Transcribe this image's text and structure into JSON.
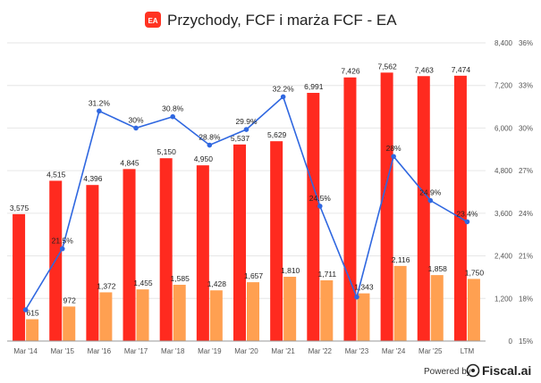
{
  "chart_data": {
    "type": "bar",
    "title": "Przychody, FCF i marża FCF - EA",
    "logo_text": "EA",
    "categories": [
      "Mar '14",
      "Mar '15",
      "Mar '16",
      "Mar '17",
      "Mar '18",
      "Mar '19",
      "Mar '20",
      "Mar '21",
      "Mar '22",
      "Mar '23",
      "Mar '24",
      "Mar '25",
      "LTM"
    ],
    "series": [
      {
        "name": "Przychody",
        "type": "bar",
        "color": "#ff2a1f",
        "values": [
          3575,
          4515,
          4396,
          4845,
          5150,
          4950,
          5537,
          5629,
          6991,
          7426,
          7562,
          7463,
          7474
        ],
        "labels": [
          "3,575",
          "4,515",
          "4,396",
          "4,845",
          "5,150",
          "4,950",
          "5,537",
          "5,629",
          "6,991",
          "7,426",
          "7,562",
          "7,463",
          "7,474"
        ]
      },
      {
        "name": "FCF",
        "type": "bar",
        "color": "#ffa051",
        "values": [
          615,
          972,
          1372,
          1455,
          1585,
          1428,
          1657,
          1810,
          1711,
          1343,
          2116,
          1858,
          1750
        ],
        "labels": [
          "615",
          "972",
          "1,372",
          "1,455",
          "1,585",
          "1,428",
          "1,657",
          "1,810",
          "1,711",
          "1,343",
          "2,116",
          "1,858",
          "1,750"
        ]
      },
      {
        "name": "Marża FCF",
        "type": "line",
        "color": "#2f67e0",
        "values": [
          17.2,
          21.5,
          31.2,
          30.0,
          30.8,
          28.8,
          29.9,
          32.2,
          24.5,
          18.1,
          28.0,
          24.9,
          23.4
        ],
        "labels": [
          "",
          "21.5%",
          "31.2%",
          "30%",
          "30.8%",
          "28.8%",
          "29.9%",
          "32.2%",
          "24.5%",
          "",
          "28%",
          "24.9%",
          "23.4%"
        ]
      }
    ],
    "ylim_left": [
      0,
      8400
    ],
    "ylim_right": [
      15,
      36
    ],
    "yticks_left": [
      "0",
      "1,200",
      "2,400",
      "3,600",
      "4,800",
      "6,000",
      "7,200",
      "8,400"
    ],
    "yticks_right": [
      "15%",
      "18%",
      "21%",
      "24%",
      "27%",
      "30%",
      "33%",
      "36%"
    ],
    "grid": true
  },
  "footer": {
    "powered_by": "Powered by",
    "brand": "Fiscal.ai"
  }
}
